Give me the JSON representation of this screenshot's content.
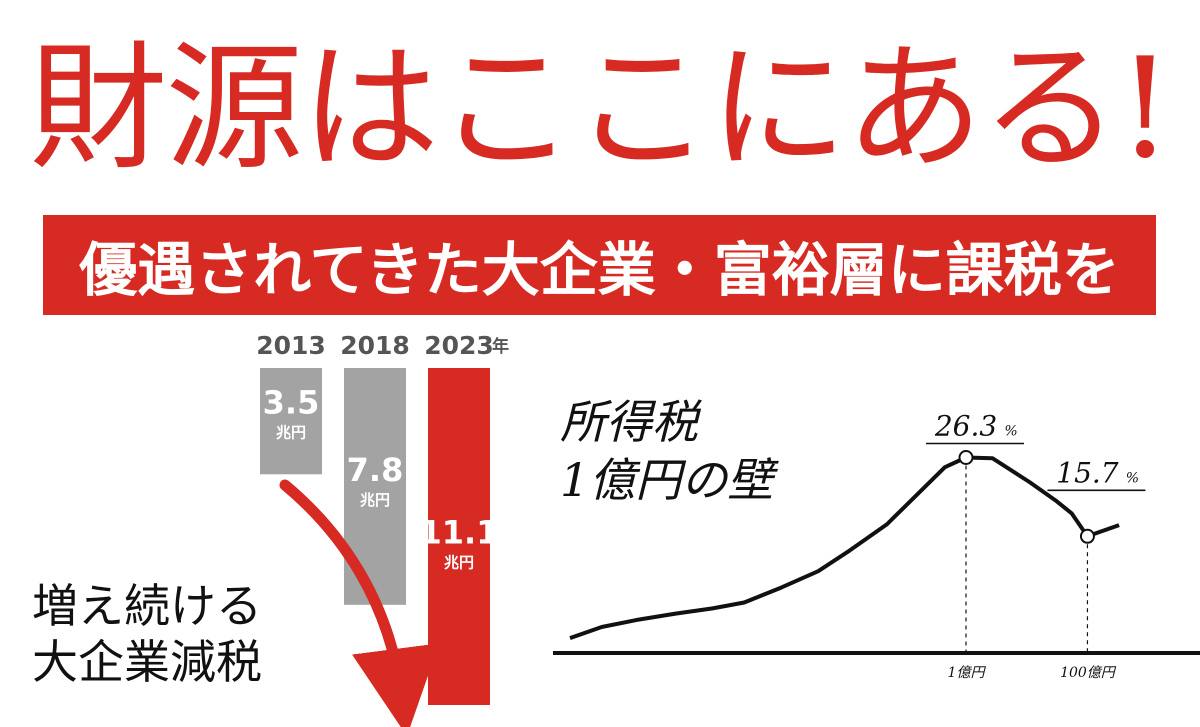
{
  "headline": "財源はここにある!",
  "banner": "優遇されてきた大企業・富裕層に課税を",
  "chart_data": [
    {
      "type": "bar",
      "categories": [
        "2013",
        "2018",
        "2023"
      ],
      "category_unit": "年",
      "values": [
        3.5,
        7.8,
        11.1
      ],
      "value_labels": [
        "3.5",
        "7.8",
        "11.1"
      ],
      "value_unit": "兆円",
      "bar_colors": [
        "#a3a3a3",
        "#a3a3a3",
        "#d62a22"
      ],
      "orientation": "downward",
      "annotation": [
        "増え続ける",
        "大企業減税"
      ]
    },
    {
      "type": "line",
      "title": [
        "所得税",
        "1億円の壁"
      ],
      "xticks": [
        "1億円",
        "100億円"
      ],
      "points": [
        [
          0,
          2.0
        ],
        [
          0.06,
          3.5
        ],
        [
          0.13,
          4.5
        ],
        [
          0.2,
          5.3
        ],
        [
          0.27,
          6.0
        ],
        [
          0.33,
          6.8
        ],
        [
          0.4,
          8.8
        ],
        [
          0.47,
          11.0
        ],
        [
          0.53,
          13.8
        ],
        [
          0.6,
          17.3
        ],
        [
          0.66,
          21.5
        ],
        [
          0.71,
          25.0
        ],
        [
          0.75,
          26.3
        ],
        [
          0.8,
          26.2
        ],
        [
          0.87,
          23.0
        ],
        [
          0.92,
          20.5
        ],
        [
          0.95,
          18.8
        ],
        [
          0.98,
          15.7
        ],
        [
          1.04,
          17.2
        ]
      ],
      "highlights": [
        {
          "x": 0.75,
          "label": "26.3",
          "unit": "%"
        },
        {
          "x": 0.98,
          "label": "15.7",
          "unit": "%"
        }
      ],
      "ylim": [
        0,
        30
      ]
    }
  ],
  "colors": {
    "accent": "#d62a22",
    "bar_gray": "#a3a3a3",
    "ink": "#111111"
  }
}
